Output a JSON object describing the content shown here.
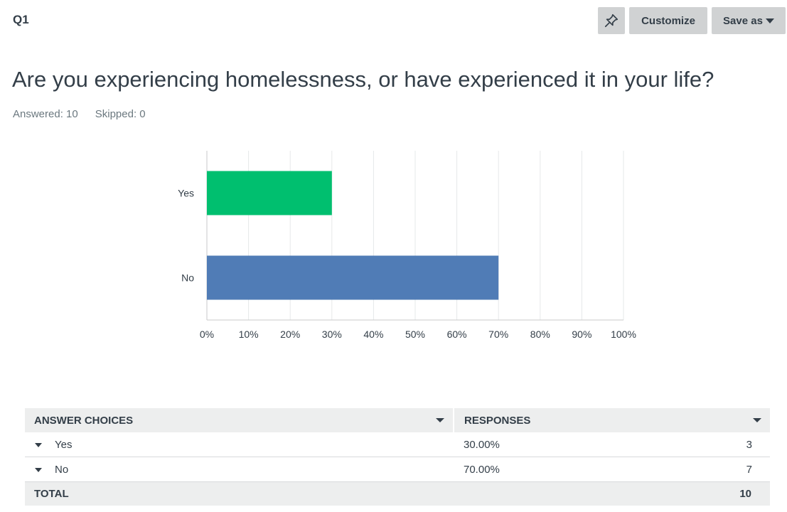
{
  "header": {
    "question_number": "Q1",
    "customize_label": "Customize",
    "save_label": "Save as"
  },
  "question": {
    "title": "Are you experiencing homelessness, or have experienced it in your life?",
    "answered": "Answered: 10",
    "skipped": "Skipped: 0"
  },
  "chart_data": {
    "type": "bar",
    "orientation": "horizontal",
    "categories": [
      "Yes",
      "No"
    ],
    "values": [
      30,
      70
    ],
    "colors": [
      "#00bf6f",
      "#507cb6"
    ],
    "xlim": [
      0,
      100
    ],
    "ticks": [
      "0%",
      "10%",
      "20%",
      "30%",
      "40%",
      "50%",
      "60%",
      "70%",
      "80%",
      "90%",
      "100%"
    ],
    "grid": true
  },
  "table": {
    "headers": [
      "ANSWER CHOICES",
      "RESPONSES"
    ],
    "rows": [
      {
        "choice": "Yes",
        "percent": "30.00%",
        "count": "3"
      },
      {
        "choice": "No",
        "percent": "70.00%",
        "count": "7"
      }
    ],
    "total_label": "TOTAL",
    "total_value": "10"
  }
}
